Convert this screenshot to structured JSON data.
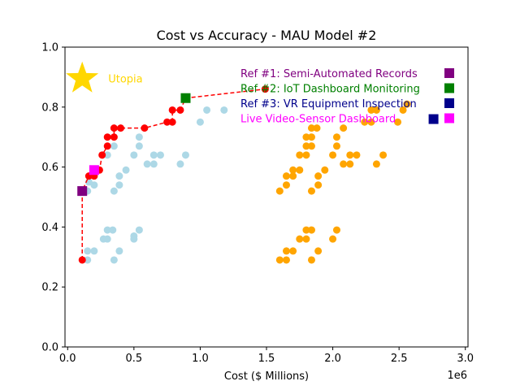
{
  "chart_data": {
    "type": "scatter",
    "title": "Cost vs Accuracy - MAU Model #2",
    "xlabel": "Cost ($ Millions)",
    "ylabel": "",
    "x_scale_label": "1e6",
    "xlim": [
      -20000,
      3020000
    ],
    "ylim": [
      0,
      1.0
    ],
    "xticks": [
      0,
      500000,
      1000000,
      1500000,
      2000000,
      2500000,
      3000000
    ],
    "xtick_labels": [
      "0.0",
      "0.5",
      "1.0",
      "1.5",
      "2.0",
      "2.5",
      "3.0"
    ],
    "yticks": [
      0,
      0.2,
      0.4,
      0.6,
      0.8,
      1.0
    ],
    "ytick_labels": [
      "0.0",
      "0.2",
      "0.4",
      "0.6",
      "0.8",
      "1.0"
    ],
    "grid": false,
    "series": [
      {
        "color": "#add8e6",
        "points": [
          [
            150000,
            0.29
          ],
          [
            200000,
            0.32
          ],
          [
            150000,
            0.32
          ],
          [
            270000,
            0.36
          ],
          [
            300000,
            0.36
          ],
          [
            300000,
            0.39
          ],
          [
            340000,
            0.39
          ],
          [
            350000,
            0.29
          ],
          [
            390000,
            0.32
          ],
          [
            500000,
            0.37
          ],
          [
            500000,
            0.36
          ],
          [
            540000,
            0.39
          ],
          [
            150000,
            0.52
          ],
          [
            200000,
            0.54
          ],
          [
            160000,
            0.55
          ],
          [
            350000,
            0.52
          ],
          [
            390000,
            0.54
          ],
          [
            390000,
            0.57
          ],
          [
            440000,
            0.59
          ],
          [
            300000,
            0.64
          ],
          [
            350000,
            0.67
          ],
          [
            500000,
            0.64
          ],
          [
            540000,
            0.67
          ],
          [
            540000,
            0.7
          ],
          [
            600000,
            0.61
          ],
          [
            650000,
            0.61
          ],
          [
            650000,
            0.64
          ],
          [
            700000,
            0.64
          ],
          [
            850000,
            0.61
          ],
          [
            890000,
            0.64
          ],
          [
            1000000,
            0.75
          ],
          [
            1050000,
            0.79
          ],
          [
            1180000,
            0.79
          ]
        ]
      },
      {
        "color": "#ffa500",
        "points": [
          [
            1600000,
            0.29
          ],
          [
            1650000,
            0.29
          ],
          [
            1650000,
            0.32
          ],
          [
            1700000,
            0.32
          ],
          [
            1750000,
            0.36
          ],
          [
            1800000,
            0.36
          ],
          [
            1800000,
            0.39
          ],
          [
            1840000,
            0.39
          ],
          [
            1840000,
            0.29
          ],
          [
            1890000,
            0.32
          ],
          [
            2000000,
            0.36
          ],
          [
            2030000,
            0.39
          ],
          [
            1600000,
            0.52
          ],
          [
            1650000,
            0.54
          ],
          [
            1650000,
            0.57
          ],
          [
            1700000,
            0.57
          ],
          [
            1700000,
            0.59
          ],
          [
            1750000,
            0.59
          ],
          [
            1840000,
            0.52
          ],
          [
            1890000,
            0.54
          ],
          [
            1890000,
            0.57
          ],
          [
            1940000,
            0.59
          ],
          [
            1750000,
            0.64
          ],
          [
            1800000,
            0.64
          ],
          [
            1800000,
            0.67
          ],
          [
            1800000,
            0.7
          ],
          [
            1840000,
            0.67
          ],
          [
            1840000,
            0.7
          ],
          [
            1840000,
            0.73
          ],
          [
            1880000,
            0.73
          ],
          [
            2000000,
            0.64
          ],
          [
            2030000,
            0.67
          ],
          [
            2030000,
            0.7
          ],
          [
            2080000,
            0.73
          ],
          [
            2080000,
            0.61
          ],
          [
            2130000,
            0.61
          ],
          [
            2130000,
            0.64
          ],
          [
            2180000,
            0.64
          ],
          [
            2240000,
            0.75
          ],
          [
            2290000,
            0.75
          ],
          [
            2290000,
            0.79
          ],
          [
            2330000,
            0.79
          ],
          [
            2330000,
            0.61
          ],
          [
            2380000,
            0.64
          ],
          [
            2490000,
            0.75
          ],
          [
            2530000,
            0.79
          ],
          [
            2560000,
            0.81
          ]
        ]
      },
      {
        "color": "#ff0000",
        "line_style": "dashed",
        "points": [
          [
            110000,
            0.29
          ],
          [
            110000,
            0.52
          ],
          [
            160000,
            0.57
          ],
          [
            200000,
            0.57
          ],
          [
            240000,
            0.59
          ],
          [
            260000,
            0.64
          ],
          [
            300000,
            0.67
          ],
          [
            300000,
            0.7
          ],
          [
            350000,
            0.7
          ],
          [
            350000,
            0.73
          ],
          [
            400000,
            0.73
          ],
          [
            580000,
            0.73
          ],
          [
            750000,
            0.75
          ],
          [
            790000,
            0.75
          ],
          [
            790000,
            0.79
          ],
          [
            850000,
            0.79
          ],
          [
            890000,
            0.83
          ],
          [
            1490000,
            0.86
          ]
        ]
      }
    ],
    "utopia": {
      "label": "Utopia",
      "x": 110000,
      "y": 0.895,
      "color": "#ffd700"
    },
    "references": [
      {
        "label": "Ref #1: Semi-Automated Records",
        "color": "#800080",
        "x": 110000,
        "y": 0.52
      },
      {
        "label": "Ref #2: IoT Dashboard Monitoring",
        "color": "#008000",
        "x": 890000,
        "y": 0.83
      },
      {
        "label": "Ref #3: VR Equipment Inspection",
        "color": "#00008b",
        "x": 2760000,
        "y": 0.76
      },
      {
        "label": "Live Video-Sensor Dashboard",
        "color": "#ff00ff",
        "x": 200000,
        "y": 0.59
      }
    ],
    "legend_placement": "top-right"
  }
}
